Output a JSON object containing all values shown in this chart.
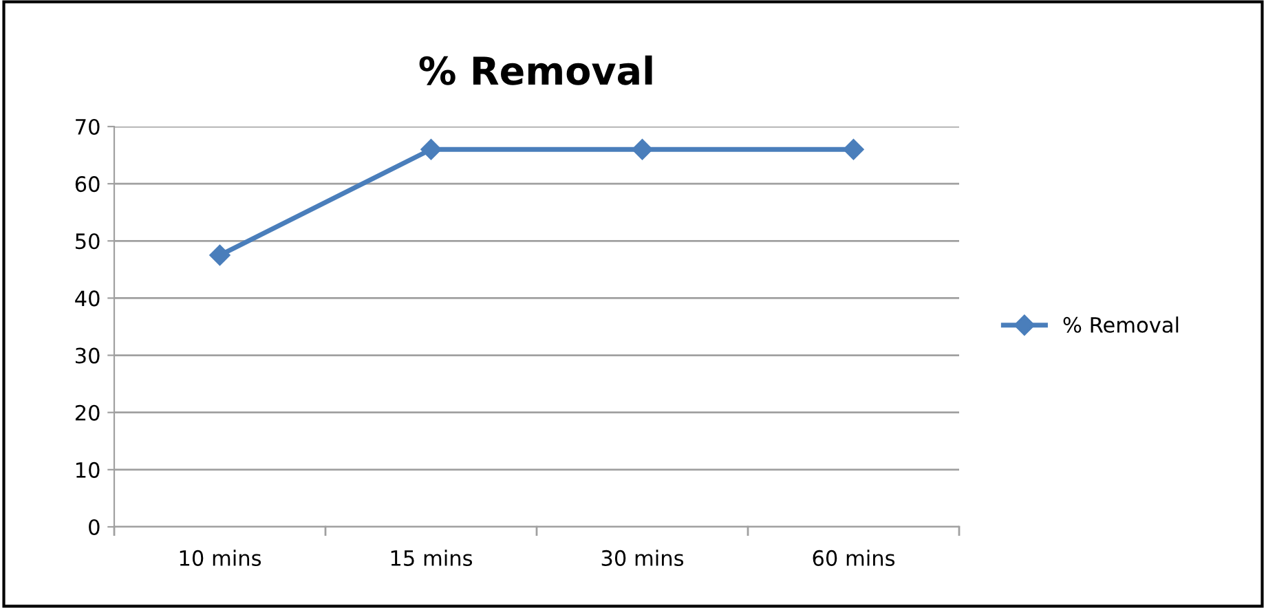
{
  "chart_data": {
    "type": "line",
    "title": "% Removal",
    "categories": [
      "10 mins",
      "15 mins",
      "30 mins",
      "60 mins"
    ],
    "series": [
      {
        "name": "% Removal",
        "color": "#4a7ebb",
        "values": [
          47.5,
          66,
          66,
          66
        ]
      }
    ],
    "ylim": [
      0,
      70
    ],
    "yticks": [
      0,
      10,
      20,
      30,
      40,
      50,
      60,
      70
    ],
    "grid": "y",
    "legend": "right",
    "marker": "diamond",
    "line_style": "solid"
  }
}
